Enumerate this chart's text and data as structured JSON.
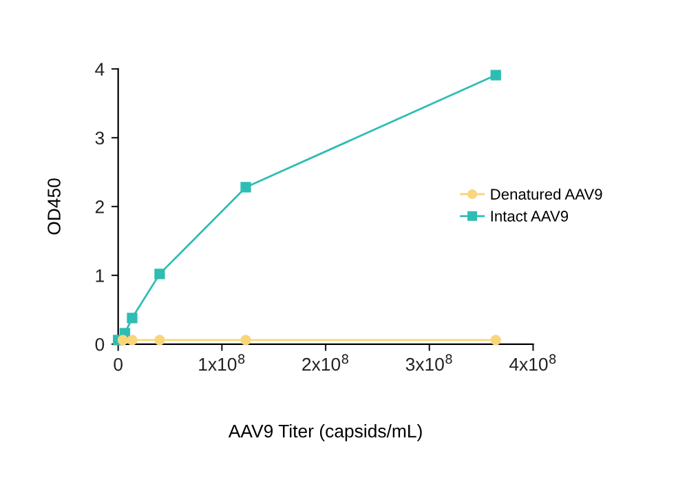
{
  "chart_data": {
    "type": "line",
    "xlabel": "AAV9 Titer (capsids/mL)",
    "ylabel": "OD450",
    "xlim": [
      0,
      400000000
    ],
    "xticks": [
      0,
      {
        "value": 100000000,
        "label": "1x10$^{8}$"
      },
      {
        "value": 200000000,
        "label": "2x10$^{8}$"
      },
      {
        "value": 300000000,
        "label": "3x10$^{8}$"
      },
      {
        "value": 400000000,
        "label": "4x10$^{8}$"
      }
    ],
    "ylim": [
      0,
      4
    ],
    "yticks": [
      0,
      1,
      2,
      3,
      4
    ],
    "grid": false,
    "legend": "right",
    "series": [
      {
        "name": "Denatured AAV9",
        "color": "#f9d57c",
        "marker": "circle",
        "x": [
          4500000,
          13500000,
          40000000,
          123000000,
          364000000
        ],
        "values": [
          0.06,
          0.06,
          0.06,
          0.06,
          0.06
        ]
      },
      {
        "name": "Intact AAV9",
        "color": "#2ebdb3",
        "marker": "square",
        "x": [
          0,
          6500000,
          13500000,
          40000000,
          123000000,
          364000000
        ],
        "values": [
          0.06,
          0.16,
          0.38,
          1.02,
          2.28,
          3.91
        ]
      }
    ]
  }
}
